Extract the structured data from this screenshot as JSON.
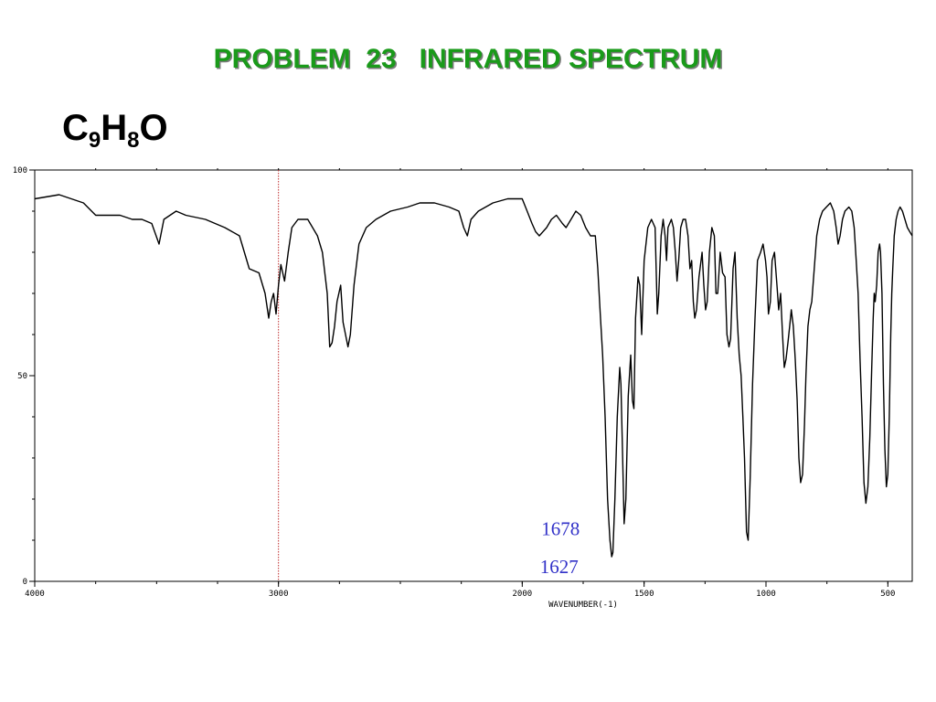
{
  "title": "PROBLEM  23   INFRARED SPECTRUM",
  "title_color": "#1a9a1a",
  "formula": {
    "c": "C",
    "c_sub": "9",
    "h": "H",
    "h_sub": "8",
    "o": "O"
  },
  "chart_data": {
    "type": "line",
    "title": "PROBLEM  23   INFRARED SPECTRUM",
    "xlabel": "WAVENUMBER(-1)",
    "ylabel": "",
    "xlim": [
      4000,
      400
    ],
    "ylim": [
      0,
      100
    ],
    "x_ticks": [
      {
        "value": 4000,
        "label": "4000"
      },
      {
        "value": 3000,
        "label": "3000"
      },
      {
        "value": 2000,
        "label": "2000"
      },
      {
        "value": 1500,
        "label": "1500"
      },
      {
        "value": 1000,
        "label": "1000"
      },
      {
        "value": 500,
        "label": "500"
      }
    ],
    "y_ticks": [
      {
        "value": 0,
        "label": "0"
      },
      {
        "value": 50,
        "label": "50"
      },
      {
        "value": 100,
        "label": "100"
      }
    ],
    "reference_line": {
      "x": 3000,
      "color": "#c03030"
    },
    "line_color": "#000000",
    "annotations": [
      {
        "text": "1678",
        "x": 1678,
        "y": 9
      },
      {
        "text": "1627",
        "x": 1627,
        "y": 4
      }
    ],
    "series": [
      {
        "points": [
          [
            4000,
            93
          ],
          [
            3900,
            94
          ],
          [
            3800,
            92
          ],
          [
            3750,
            89
          ],
          [
            3650,
            89
          ],
          [
            3600,
            88
          ],
          [
            3560,
            88
          ],
          [
            3520,
            87
          ],
          [
            3490,
            82
          ],
          [
            3470,
            88
          ],
          [
            3420,
            90
          ],
          [
            3380,
            89
          ],
          [
            3300,
            88
          ],
          [
            3220,
            86
          ],
          [
            3160,
            84
          ],
          [
            3120,
            76
          ],
          [
            3080,
            75
          ],
          [
            3055,
            70
          ],
          [
            3040,
            64
          ],
          [
            3030,
            68
          ],
          [
            3020,
            70
          ],
          [
            3010,
            65
          ],
          [
            3000,
            72
          ],
          [
            2990,
            77
          ],
          [
            2975,
            73
          ],
          [
            2960,
            80
          ],
          [
            2945,
            86
          ],
          [
            2920,
            88
          ],
          [
            2880,
            88
          ],
          [
            2840,
            84
          ],
          [
            2820,
            80
          ],
          [
            2800,
            70
          ],
          [
            2790,
            57
          ],
          [
            2780,
            58
          ],
          [
            2770,
            62
          ],
          [
            2760,
            68
          ],
          [
            2745,
            72
          ],
          [
            2735,
            63
          ],
          [
            2725,
            60
          ],
          [
            2715,
            57
          ],
          [
            2705,
            60
          ],
          [
            2690,
            72
          ],
          [
            2670,
            82
          ],
          [
            2640,
            86
          ],
          [
            2600,
            88
          ],
          [
            2540,
            90
          ],
          [
            2470,
            91
          ],
          [
            2420,
            92
          ],
          [
            2360,
            92
          ],
          [
            2300,
            91
          ],
          [
            2260,
            90
          ],
          [
            2240,
            86
          ],
          [
            2225,
            84
          ],
          [
            2210,
            88
          ],
          [
            2180,
            90
          ],
          [
            2120,
            92
          ],
          [
            2060,
            93
          ],
          [
            2000,
            93
          ],
          [
            1980,
            90
          ],
          [
            1960,
            87
          ],
          [
            1945,
            85
          ],
          [
            1930,
            84
          ],
          [
            1900,
            86
          ],
          [
            1880,
            88
          ],
          [
            1860,
            89
          ],
          [
            1835,
            87
          ],
          [
            1820,
            86
          ],
          [
            1800,
            88
          ],
          [
            1780,
            90
          ],
          [
            1760,
            89
          ],
          [
            1740,
            86
          ],
          [
            1720,
            84
          ],
          [
            1700,
            84
          ],
          [
            1690,
            76
          ],
          [
            1680,
            65
          ],
          [
            1670,
            55
          ],
          [
            1660,
            40
          ],
          [
            1650,
            20
          ],
          [
            1640,
            10
          ],
          [
            1633,
            6
          ],
          [
            1628,
            7
          ],
          [
            1620,
            20
          ],
          [
            1610,
            40
          ],
          [
            1600,
            52
          ],
          [
            1595,
            48
          ],
          [
            1588,
            30
          ],
          [
            1582,
            14
          ],
          [
            1575,
            20
          ],
          [
            1565,
            45
          ],
          [
            1555,
            55
          ],
          [
            1548,
            44
          ],
          [
            1542,
            42
          ],
          [
            1535,
            64
          ],
          [
            1525,
            74
          ],
          [
            1518,
            72
          ],
          [
            1510,
            60
          ],
          [
            1500,
            78
          ],
          [
            1485,
            86
          ],
          [
            1470,
            88
          ],
          [
            1455,
            86
          ],
          [
            1446,
            65
          ],
          [
            1440,
            70
          ],
          [
            1430,
            84
          ],
          [
            1422,
            88
          ],
          [
            1414,
            84
          ],
          [
            1408,
            78
          ],
          [
            1402,
            86
          ],
          [
            1388,
            88
          ],
          [
            1380,
            86
          ],
          [
            1372,
            80
          ],
          [
            1365,
            73
          ],
          [
            1358,
            78
          ],
          [
            1350,
            86
          ],
          [
            1340,
            88
          ],
          [
            1330,
            88
          ],
          [
            1320,
            84
          ],
          [
            1312,
            76
          ],
          [
            1305,
            78
          ],
          [
            1298,
            68
          ],
          [
            1292,
            64
          ],
          [
            1285,
            66
          ],
          [
            1275,
            74
          ],
          [
            1262,
            80
          ],
          [
            1255,
            72
          ],
          [
            1248,
            66
          ],
          [
            1241,
            68
          ],
          [
            1232,
            80
          ],
          [
            1222,
            86
          ],
          [
            1212,
            84
          ],
          [
            1205,
            70
          ],
          [
            1198,
            70
          ],
          [
            1188,
            80
          ],
          [
            1178,
            75
          ],
          [
            1168,
            74
          ],
          [
            1160,
            60
          ],
          [
            1152,
            57
          ],
          [
            1145,
            59
          ],
          [
            1135,
            76
          ],
          [
            1127,
            80
          ],
          [
            1118,
            64
          ],
          [
            1110,
            55
          ],
          [
            1102,
            50
          ],
          [
            1095,
            40
          ],
          [
            1088,
            30
          ],
          [
            1080,
            12
          ],
          [
            1073,
            10
          ],
          [
            1065,
            25
          ],
          [
            1055,
            48
          ],
          [
            1045,
            64
          ],
          [
            1035,
            78
          ],
          [
            1022,
            80
          ],
          [
            1012,
            82
          ],
          [
            1002,
            78
          ],
          [
            996,
            74
          ],
          [
            990,
            65
          ],
          [
            982,
            68
          ],
          [
            975,
            78
          ],
          [
            965,
            80
          ],
          [
            955,
            72
          ],
          [
            948,
            66
          ],
          [
            940,
            70
          ],
          [
            932,
            60
          ],
          [
            925,
            52
          ],
          [
            918,
            54
          ],
          [
            910,
            58
          ],
          [
            903,
            62
          ],
          [
            896,
            66
          ],
          [
            888,
            62
          ],
          [
            880,
            54
          ],
          [
            872,
            44
          ],
          [
            865,
            30
          ],
          [
            858,
            24
          ],
          [
            850,
            26
          ],
          [
            842,
            38
          ],
          [
            836,
            50
          ],
          [
            828,
            62
          ],
          [
            820,
            66
          ],
          [
            812,
            68
          ],
          [
            802,
            76
          ],
          [
            792,
            84
          ],
          [
            780,
            88
          ],
          [
            768,
            90
          ],
          [
            752,
            91
          ],
          [
            736,
            92
          ],
          [
            722,
            90
          ],
          [
            712,
            86
          ],
          [
            704,
            82
          ],
          [
            696,
            84
          ],
          [
            686,
            88
          ],
          [
            676,
            90
          ],
          [
            660,
            91
          ],
          [
            648,
            90
          ],
          [
            638,
            86
          ],
          [
            630,
            78
          ],
          [
            622,
            70
          ],
          [
            614,
            54
          ],
          [
            606,
            40
          ],
          [
            598,
            24
          ],
          [
            590,
            19
          ],
          [
            582,
            23
          ],
          [
            574,
            35
          ],
          [
            566,
            52
          ],
          [
            560,
            64
          ],
          [
            556,
            70
          ],
          [
            552,
            68
          ],
          [
            546,
            72
          ],
          [
            540,
            80
          ],
          [
            534,
            82
          ],
          [
            530,
            80
          ],
          [
            524,
            70
          ],
          [
            518,
            48
          ],
          [
            512,
            32
          ],
          [
            506,
            23
          ],
          [
            500,
            26
          ],
          [
            494,
            40
          ],
          [
            488,
            60
          ],
          [
            484,
            70
          ],
          [
            480,
            76
          ],
          [
            474,
            84
          ],
          [
            466,
            88
          ],
          [
            458,
            90
          ],
          [
            450,
            91
          ],
          [
            440,
            90
          ],
          [
            430,
            88
          ],
          [
            420,
            86
          ],
          [
            410,
            85
          ],
          [
            400,
            84
          ]
        ]
      }
    ]
  }
}
